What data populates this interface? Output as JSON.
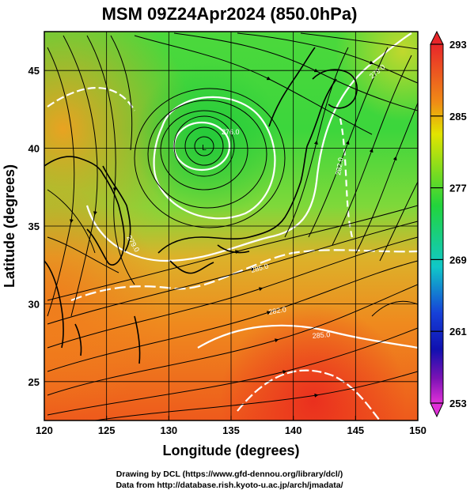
{
  "title": "MSM 09Z24Apr2024 (850.0hPa)",
  "xlabel": "Longitude (degrees)",
  "ylabel": "Latitude  (degrees)",
  "credits": [
    "Drawing by DCL (https://www.gfd-dennou.org/library/dcl/)",
    "Data from http://database.rish.kyoto-u.ac.jp/arch/jmadata/"
  ],
  "map": {
    "lon_range": [
      120,
      150
    ],
    "lat_range": [
      22.5,
      47.5
    ],
    "lon_ticks": [
      "120",
      "125",
      "130",
      "135",
      "140",
      "145",
      "150"
    ],
    "lat_ticks": [
      "25",
      "30",
      "35",
      "40",
      "45"
    ],
    "grid": true,
    "low_center_label": "L",
    "contour_labels": [
      "285.0",
      "282.0",
      "279.0",
      "276.0",
      "279.0",
      "282.0",
      "285.0"
    ]
  },
  "colorbar": {
    "min": 253,
    "max": 293,
    "labels": [
      "293",
      "285",
      "277",
      "269",
      "261",
      "253"
    ],
    "colors": {
      "top": "#e8262a",
      "orange": "#f08a16",
      "yellow": "#e2e400",
      "green": "#22d43c",
      "cyan": "#10c8c8",
      "blue": "#1640d8",
      "navy": "#1010b0",
      "purple": "#7a12b4",
      "magenta": "#e030d8"
    }
  }
}
